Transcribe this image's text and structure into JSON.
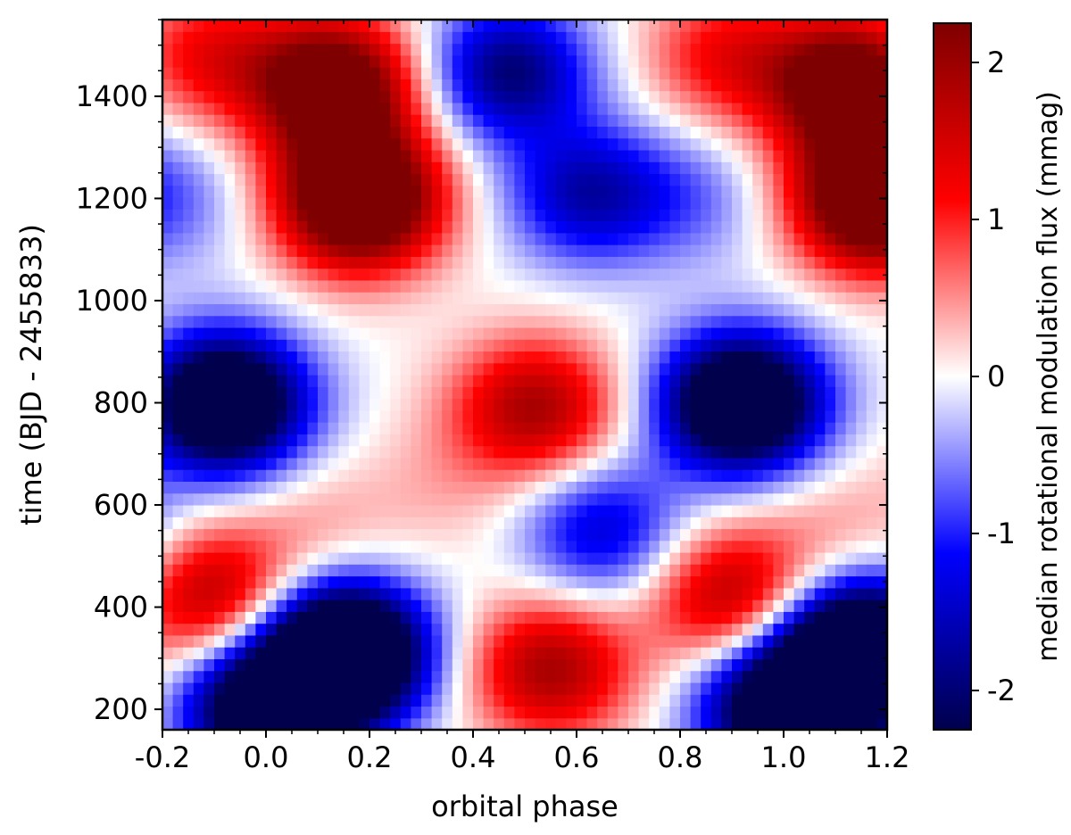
{
  "chart_data": {
    "type": "heatmap",
    "title": "",
    "xlabel": "orbital phase",
    "ylabel": "time (BJD - 2455833)",
    "xlim": [
      -0.2,
      1.2
    ],
    "ylim": [
      160,
      1550
    ],
    "x_ticks": [
      -0.2,
      0.0,
      0.2,
      0.4,
      0.6,
      0.8,
      1.0,
      1.2
    ],
    "x_tick_labels": [
      "-0.2",
      "0.0",
      "0.2",
      "0.4",
      "0.6",
      "0.8",
      "1.0",
      "1.2"
    ],
    "y_ticks": [
      200,
      400,
      600,
      800,
      1000,
      1200,
      1400
    ],
    "y_tick_labels": [
      "200",
      "400",
      "600",
      "800",
      "1000",
      "1200",
      "1400"
    ],
    "colorbar": {
      "label": "median rotational modulation flux (mmag)",
      "range": [
        -2.25,
        2.25
      ],
      "ticks": [
        -2,
        -1,
        0,
        1,
        2
      ],
      "tick_labels": [
        "-2",
        "-1",
        "0",
        "1",
        "2"
      ],
      "colormap": "seismic",
      "colors": [
        "#00004c",
        "#0000ff",
        "#ffffff",
        "#ff0000",
        "#7f0000"
      ]
    },
    "grid": false,
    "features": [
      {
        "phase": 0.13,
        "time": 1420,
        "value": 1.5
      },
      {
        "phase": 0.47,
        "time": 1450,
        "value": -2.0
      },
      {
        "phase": 0.89,
        "time": 1480,
        "value": 1.2
      },
      {
        "phase": 1.13,
        "time": 1420,
        "value": 1.5
      },
      {
        "phase": 0.18,
        "time": 1200,
        "value": 1.8
      },
      {
        "phase": 0.62,
        "time": 1210,
        "value": -1.6
      },
      {
        "phase": 1.18,
        "time": 1200,
        "value": 1.8
      },
      {
        "phase": -0.18,
        "time": 1200,
        "value": -0.6
      },
      {
        "phase": -0.08,
        "time": 800,
        "value": -1.8
      },
      {
        "phase": 0.52,
        "time": 790,
        "value": 1.9
      },
      {
        "phase": 0.92,
        "time": 800,
        "value": -1.8
      },
      {
        "phase": 0.65,
        "time": 550,
        "value": -1.4
      },
      {
        "phase": 0.1,
        "time": 560,
        "value": 0.4
      },
      {
        "phase": 0.15,
        "time": 310,
        "value": -2.2
      },
      {
        "phase": 0.55,
        "time": 280,
        "value": 1.9
      },
      {
        "phase": 1.15,
        "time": 310,
        "value": -2.2
      },
      {
        "phase": -0.1,
        "time": 420,
        "value": 0.9
      },
      {
        "phase": 0.9,
        "time": 420,
        "value": 0.9
      },
      {
        "phase": 0.35,
        "time": 640,
        "value": 0.3
      },
      {
        "phase": 0.0,
        "time": 200,
        "value": -1.6
      },
      {
        "phase": 1.0,
        "time": 200,
        "value": -1.6
      }
    ]
  }
}
